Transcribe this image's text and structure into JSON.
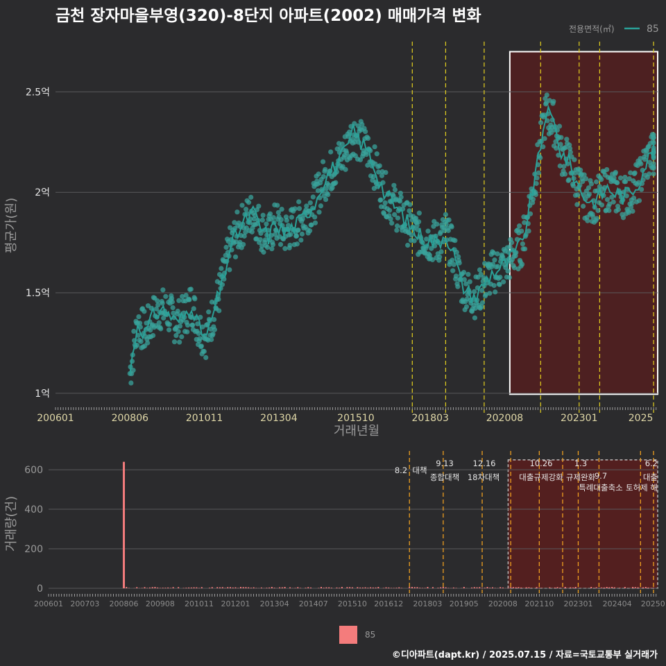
{
  "title": "금천 장자마을부영(320)-8단지 아파트(2002) 매매가격 변화",
  "footer": "©디아파트(dapt.kr) / 2025.07.15 / 자료=국토교통부 실거래가",
  "colors": {
    "background": "#2b2b2d",
    "price_line": "#2aa198",
    "price_point": "#3aa39b",
    "volume_bar": "#f47c7c",
    "highlight_fill": "#5a1d1d",
    "policy_line": "#e6d21f",
    "policy_line_vol": "#f0a020"
  },
  "chart_data": [
    {
      "type": "line",
      "xlabel": "거래년월",
      "ylabel": "평균가(원)",
      "legend": {
        "title": "전용면적(㎡)",
        "entries": [
          "85"
        ],
        "position": "top-right"
      },
      "x_range": [
        "2006-01",
        "2025-07"
      ],
      "x_ticks": [
        "200601",
        "200806",
        "201011",
        "201304",
        "201510",
        "201803",
        "202008",
        "202301",
        "2025"
      ],
      "y_ticks": [
        "1억",
        "1.5억",
        "2억",
        "2.5억"
      ],
      "y_tick_values": [
        1.0,
        1.5,
        2.0,
        2.5
      ],
      "ylim": [
        0.92,
        2.75
      ],
      "highlight_range": [
        "2020-10",
        "2025-07"
      ],
      "policy_dates": [
        "2017-08",
        "2018-09",
        "2019-12",
        "2021-10",
        "2023-01",
        "2023-09",
        "2025-06"
      ],
      "series": [
        {
          "name": "85",
          "x": [
            "2008-06",
            "2008-09",
            "2008-12",
            "2009-03",
            "2009-06",
            "2009-09",
            "2009-12",
            "2010-03",
            "2010-06",
            "2010-09",
            "2010-12",
            "2011-03",
            "2011-06",
            "2011-09",
            "2011-12",
            "2012-03",
            "2012-06",
            "2012-09",
            "2012-12",
            "2013-03",
            "2013-06",
            "2013-09",
            "2013-12",
            "2014-03",
            "2014-06",
            "2014-09",
            "2014-12",
            "2015-03",
            "2015-06",
            "2015-09",
            "2015-12",
            "2016-03",
            "2016-06",
            "2016-09",
            "2016-12",
            "2017-03",
            "2017-06",
            "2017-09",
            "2017-12",
            "2018-03",
            "2018-06",
            "2018-09",
            "2018-12",
            "2019-03",
            "2019-06",
            "2019-09",
            "2019-12",
            "2020-03",
            "2020-06",
            "2020-09",
            "2020-12",
            "2021-03",
            "2021-06",
            "2021-09",
            "2021-12",
            "2022-03",
            "2022-06",
            "2022-09",
            "2022-12",
            "2023-03",
            "2023-06",
            "2023-09",
            "2023-12",
            "2024-03",
            "2024-06",
            "2024-09",
            "2024-12",
            "2025-03",
            "2025-06"
          ],
          "values": [
            1.1,
            1.35,
            1.3,
            1.38,
            1.42,
            1.4,
            1.35,
            1.38,
            1.45,
            1.32,
            1.28,
            1.42,
            1.55,
            1.72,
            1.8,
            1.86,
            1.9,
            1.82,
            1.78,
            1.85,
            1.8,
            1.82,
            1.85,
            1.9,
            1.95,
            2.05,
            2.1,
            2.15,
            2.2,
            2.3,
            2.25,
            2.2,
            2.1,
            2.0,
            1.95,
            1.9,
            1.85,
            1.8,
            1.78,
            1.76,
            1.75,
            1.8,
            1.7,
            1.55,
            1.5,
            1.48,
            1.55,
            1.6,
            1.62,
            1.65,
            1.7,
            1.75,
            1.95,
            2.15,
            2.4,
            2.35,
            2.2,
            2.15,
            2.05,
            1.98,
            1.95,
            1.98,
            2.02,
            2.0,
            1.98,
            2.0,
            2.05,
            2.15,
            2.2
          ]
        }
      ]
    },
    {
      "type": "bar",
      "ylabel": "거래량(건)",
      "x_ticks": [
        "200601",
        "200703",
        "200806",
        "200908",
        "201011",
        "201201",
        "201304",
        "201407",
        "201510",
        "201612",
        "201803",
        "201905",
        "202008",
        "202110",
        "202301",
        "202404",
        "20250"
      ],
      "y_ticks": [
        "0",
        "200",
        "400",
        "600"
      ],
      "y_tick_values": [
        0,
        200,
        400,
        600
      ],
      "ylim": [
        0,
        660
      ],
      "legend": {
        "entries": [
          "85"
        ],
        "position": "bottom"
      },
      "series": [
        {
          "name": "85",
          "spike": {
            "x": "2008-06",
            "value": 640
          },
          "baseline_monthly_range": [
            0,
            8
          ]
        }
      ],
      "annotations": [
        {
          "date": "8.2",
          "text": "대책"
        },
        {
          "date": "9.13",
          "text": "종합대책"
        },
        {
          "date": "12.16",
          "text": "18차대책"
        },
        {
          "date": "10.26",
          "text": "대출규제강화"
        },
        {
          "date": "1.3",
          "text": "규제완화"
        },
        {
          "date": "9.7",
          "text": "특례대출축소"
        },
        {
          "date": "",
          "text": "토허제 해"
        },
        {
          "date": "6.2",
          "text": "대출"
        }
      ]
    }
  ]
}
